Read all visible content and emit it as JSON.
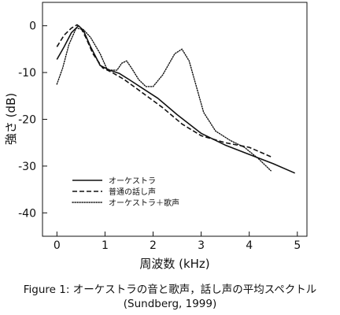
{
  "chart_data": {
    "type": "line",
    "xlabel": "周波数 (kHz)",
    "ylabel": "強さ (dB)",
    "xlim": [
      -0.3,
      5.2
    ],
    "ylim": [
      -45,
      5
    ],
    "x_ticks": [
      "0",
      "1",
      "2",
      "3",
      "4",
      "5"
    ],
    "y_ticks": [
      "0",
      "-10",
      "-20",
      "-30",
      "-40"
    ],
    "grid": false,
    "legend_position": "lower-left",
    "series": [
      {
        "name": "オーケストラ",
        "style": "solid",
        "x": [
          0.0,
          0.15,
          0.3,
          0.45,
          0.55,
          0.7,
          0.9,
          1.1,
          1.3,
          1.5,
          1.8,
          2.1,
          2.5,
          3.0,
          3.5,
          4.0,
          4.5,
          4.95
        ],
        "y": [
          -7.2,
          -4.5,
          -1.5,
          0.0,
          -1.0,
          -4.5,
          -8.5,
          -9.5,
          -10.2,
          -11.5,
          -13.5,
          -15.5,
          -19.0,
          -23.0,
          -25.5,
          -27.5,
          -29.5,
          -31.5
        ]
      },
      {
        "name": "普通の話し声",
        "style": "dashed",
        "x": [
          0.0,
          0.15,
          0.3,
          0.42,
          0.5,
          0.6,
          0.75,
          0.95,
          1.15,
          1.4,
          1.8,
          2.2,
          2.6,
          3.0,
          3.5,
          4.0,
          4.45
        ],
        "y": [
          -4.5,
          -2.0,
          -0.5,
          0.2,
          -0.5,
          -2.5,
          -6.0,
          -9.0,
          -10.0,
          -11.5,
          -14.5,
          -17.5,
          -21.0,
          -23.5,
          -25.0,
          -26.0,
          -28.0
        ]
      },
      {
        "name": "オーケストラ＋歌声",
        "style": "dotted",
        "x": [
          0.0,
          0.12,
          0.25,
          0.4,
          0.55,
          0.7,
          0.9,
          1.05,
          1.25,
          1.35,
          1.45,
          1.55,
          1.7,
          1.85,
          2.0,
          2.2,
          2.45,
          2.6,
          2.75,
          2.9,
          3.05,
          3.3,
          3.6,
          3.9,
          4.2,
          4.45
        ],
        "y": [
          -12.5,
          -9.0,
          -4.0,
          -0.5,
          -0.8,
          -2.5,
          -6.0,
          -9.5,
          -9.5,
          -8.0,
          -7.5,
          -9.0,
          -11.5,
          -13.0,
          -13.0,
          -10.5,
          -6.0,
          -5.0,
          -7.5,
          -13.0,
          -18.5,
          -22.5,
          -24.5,
          -26.0,
          -28.5,
          -31.0
        ]
      }
    ]
  },
  "caption": {
    "line1": "Figure 1: オーケストラの音と歌声，話し声の平均スペクトル",
    "line2": "(Sundberg, 1999)"
  }
}
